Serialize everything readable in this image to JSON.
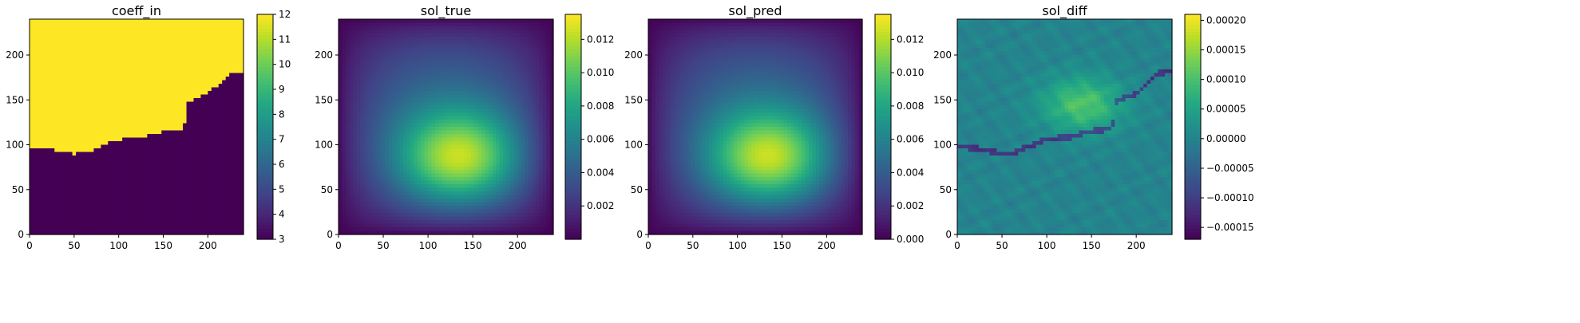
{
  "chart_data": [
    {
      "type": "heatmap",
      "title": "coeff_in",
      "field": "step",
      "x_ticks": [
        "0",
        "50",
        "100",
        "150",
        "200"
      ],
      "y_ticks": [
        "0",
        "50",
        "100",
        "150",
        "200"
      ],
      "xlim": [
        0,
        240
      ],
      "ylim": [
        0,
        240
      ],
      "colorbar": {
        "ticks": [
          "3",
          "4",
          "5",
          "6",
          "7",
          "8",
          "9",
          "10",
          "11",
          "12"
        ],
        "min": 3,
        "max": 12
      },
      "values": {
        "low": 3,
        "high": 12
      },
      "interface": [
        [
          0,
          98
        ],
        [
          20,
          96
        ],
        [
          40,
          92
        ],
        [
          50,
          90
        ],
        [
          65,
          91
        ],
        [
          80,
          98
        ],
        [
          95,
          105
        ],
        [
          110,
          107
        ],
        [
          125,
          108
        ],
        [
          140,
          113
        ],
        [
          160,
          116
        ],
        [
          170,
          118
        ],
        [
          175,
          125
        ],
        [
          177,
          148
        ],
        [
          185,
          151
        ],
        [
          200,
          157
        ],
        [
          215,
          170
        ],
        [
          225,
          180
        ],
        [
          240,
          182
        ]
      ],
      "colorscale": "viridis"
    },
    {
      "type": "heatmap",
      "title": "sol_true",
      "field": "solution",
      "x_ticks": [
        "0",
        "50",
        "100",
        "150",
        "200"
      ],
      "y_ticks": [
        "0",
        "50",
        "100",
        "150",
        "200"
      ],
      "xlim": [
        0,
        240
      ],
      "ylim": [
        0,
        240
      ],
      "colorbar": {
        "ticks": [
          "0.002",
          "0.004",
          "0.006",
          "0.008",
          "0.010",
          "0.012"
        ],
        "min": 0,
        "max": 0.0135
      },
      "peak": {
        "x": 140,
        "y": 80,
        "value": 0.0135
      },
      "colorscale": "viridis"
    },
    {
      "type": "heatmap",
      "title": "sol_pred",
      "field": "solution",
      "x_ticks": [
        "0",
        "50",
        "100",
        "150",
        "200"
      ],
      "y_ticks": [
        "0",
        "50",
        "100",
        "150",
        "200"
      ],
      "xlim": [
        0,
        240
      ],
      "ylim": [
        0,
        240
      ],
      "colorbar": {
        "ticks": [
          "0.000",
          "0.002",
          "0.004",
          "0.006",
          "0.008",
          "0.010",
          "0.012"
        ],
        "min": 0,
        "max": 0.0135
      },
      "peak": {
        "x": 140,
        "y": 80,
        "value": 0.0135
      },
      "colorscale": "viridis"
    },
    {
      "type": "heatmap",
      "title": "sol_diff",
      "field": "difference",
      "x_ticks": [
        "0",
        "50",
        "100",
        "150",
        "200"
      ],
      "y_ticks": [
        "0",
        "50",
        "100",
        "150",
        "200"
      ],
      "xlim": [
        0,
        240
      ],
      "ylim": [
        0,
        240
      ],
      "colorbar": {
        "ticks": [
          "−0.00015",
          "−0.00010",
          "−0.00005",
          "0.00000",
          "0.00005",
          "0.00010",
          "0.00015",
          "0.00020"
        ],
        "min": -0.00017,
        "max": 0.00021
      },
      "peak": {
        "x": 140,
        "y": 145,
        "value": 0.00016
      },
      "colorscale": "viridis"
    }
  ]
}
